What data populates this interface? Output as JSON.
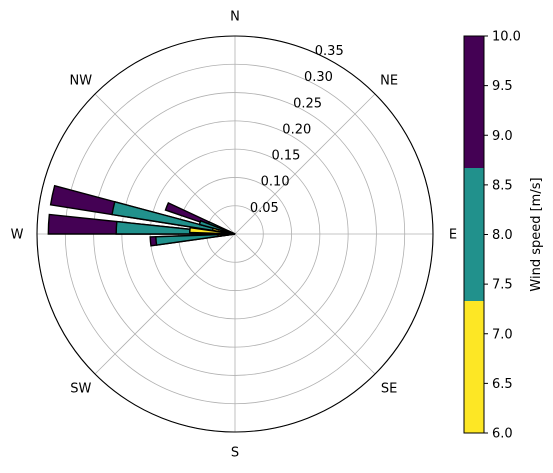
{
  "chart_data": {
    "type": "windrose",
    "directions": [
      {
        "label": "N",
        "angle_deg": 0
      },
      {
        "label": "NE",
        "angle_deg": 45
      },
      {
        "label": "E",
        "angle_deg": 90
      },
      {
        "label": "SE",
        "angle_deg": 135
      },
      {
        "label": "S",
        "angle_deg": 180
      },
      {
        "label": "SW",
        "angle_deg": 225
      },
      {
        "label": "W",
        "angle_deg": 270
      },
      {
        "label": "NW",
        "angle_deg": 315
      }
    ],
    "radial_ticks": [
      0.05,
      0.1,
      0.15,
      0.2,
      0.25,
      0.3,
      0.35
    ],
    "radial_tick_labels": [
      "0.05",
      "0.10",
      "0.15",
      "0.20",
      "0.25",
      "0.30",
      "0.35"
    ],
    "rmax": 0.35,
    "speed_bins": [
      {
        "range": [
          6.0,
          7.33
        ],
        "color": "#fde725"
      },
      {
        "range": [
          7.33,
          8.67
        ],
        "color": "#21918c"
      },
      {
        "range": [
          8.67,
          10.0
        ],
        "color": "#440154"
      }
    ],
    "sectors": [
      {
        "theta_center_deg": 273,
        "width_deg": 6,
        "stacks": [
          0.05,
          0.21,
          0.33
        ]
      },
      {
        "theta_center_deg": 282,
        "width_deg": 6,
        "stacks": [
          0.04,
          0.22,
          0.33
        ]
      },
      {
        "theta_center_deg": 292,
        "width_deg": 6,
        "stacks": [
          0.01,
          0.05,
          0.13
        ]
      },
      {
        "theta_center_deg": 265,
        "width_deg": 6,
        "stacks": [
          0.03,
          0.14,
          0.15
        ]
      },
      {
        "theta_center_deg": 288,
        "width_deg": 6,
        "stacks": [
          0.01,
          0.065,
          0.065
        ]
      },
      {
        "theta_center_deg": 275,
        "width_deg": 6,
        "stacks": [
          0.08,
          0.08,
          0.08
        ]
      }
    ],
    "colorbar": {
      "label": "Wind speed [m/s]",
      "min": 6.0,
      "max": 10.0,
      "ticks": [
        "6.0",
        "6.5",
        "7.0",
        "7.5",
        "8.0",
        "8.5",
        "9.0",
        "9.5",
        "10.0"
      ]
    },
    "grid": true
  }
}
